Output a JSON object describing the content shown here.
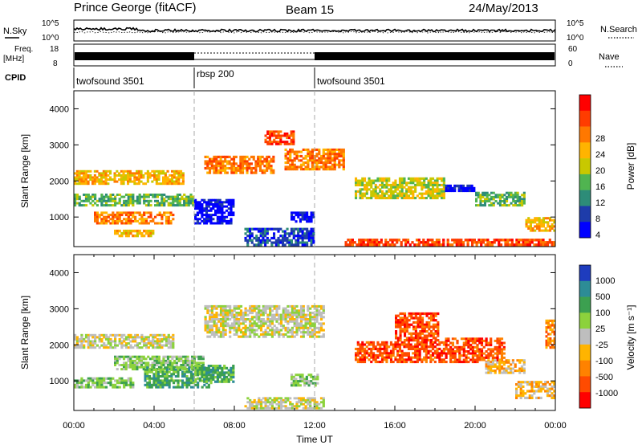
{
  "header": {
    "station": "Prince George (fitACF)",
    "beam": "Beam 15",
    "date": "24/May/2013"
  },
  "noise_panel": {
    "left_label": "N.Sky",
    "right_label": "N.Search",
    "left_ticks": [
      "10^5",
      "10^0"
    ],
    "right_ticks": [
      "10^5",
      "10^0"
    ]
  },
  "freq_panel": {
    "left_label_line1": "Freq.",
    "left_label_line2": "[MHz]",
    "left_ticks": [
      "18",
      "8"
    ],
    "right_ticks": [
      "60",
      "0"
    ],
    "right_label": "Nave"
  },
  "cpid": {
    "label": "CPID",
    "segments": [
      {
        "name": "twofsound 3501",
        "start": 0,
        "end": 6
      },
      {
        "name": "rbsp 200",
        "start": 6,
        "end": 12
      },
      {
        "name": "twofsound 3501",
        "start": 12,
        "end": 24
      }
    ]
  },
  "power_colorbar": {
    "label": "Power [dB]",
    "ticks": [
      "28",
      "24",
      "20",
      "16",
      "12",
      "8",
      "4"
    ],
    "colors": [
      "#ff0000",
      "#ff3c00",
      "#ff7800",
      "#ffb400",
      "#c8c800",
      "#50b450",
      "#2d8c78",
      "#1e3caa",
      "#0000ff"
    ]
  },
  "velocity_colorbar": {
    "label": "Velocity [m s⁻¹]",
    "ticks": [
      "1000",
      "500",
      "100",
      "25",
      "-25",
      "-100",
      "-500",
      "-1000"
    ],
    "colors": [
      "#1e3cbe",
      "#2d8c96",
      "#3ca050",
      "#8cd23c",
      "#bebebe",
      "#ffb400",
      "#ff8200",
      "#ff4b00",
      "#ff0000"
    ]
  },
  "chart_data": [
    {
      "type": "heatmap",
      "parameter": "power",
      "ylabel": "Slant Range [km]",
      "ylim": [
        180,
        4500
      ],
      "yticks": [
        1000,
        2000,
        3000,
        4000
      ],
      "xlim": [
        0,
        24
      ],
      "bands": [
        {
          "t0": 0.0,
          "t1": 5.5,
          "r0": 1900,
          "r1": 2300,
          "level": 3
        },
        {
          "t0": 0.0,
          "t1": 6.0,
          "r0": 1300,
          "r1": 1650,
          "level": 5
        },
        {
          "t0": 1.0,
          "t1": 5.0,
          "r0": 800,
          "r1": 1150,
          "level": 2
        },
        {
          "t0": 2.0,
          "t1": 4.0,
          "r0": 450,
          "r1": 650,
          "level": 3
        },
        {
          "t0": 6.0,
          "t1": 8.0,
          "r0": 800,
          "r1": 1500,
          "level": 8
        },
        {
          "t0": 8.5,
          "t1": 12.0,
          "r0": 200,
          "r1": 700,
          "level": 7
        },
        {
          "t0": 10.8,
          "t1": 12.0,
          "r0": 850,
          "r1": 1150,
          "level": 8
        },
        {
          "t0": 6.5,
          "t1": 10.0,
          "r0": 2200,
          "r1": 2700,
          "level": 2
        },
        {
          "t0": 9.5,
          "t1": 11.0,
          "r0": 3000,
          "r1": 3400,
          "level": 1
        },
        {
          "t0": 10.5,
          "t1": 13.5,
          "r0": 2300,
          "r1": 2900,
          "level": 2
        },
        {
          "t0": 14.0,
          "t1": 18.5,
          "r0": 1500,
          "r1": 2100,
          "level": 4
        },
        {
          "t0": 18.5,
          "t1": 20.0,
          "r0": 1700,
          "r1": 1900,
          "level": 8
        },
        {
          "t0": 20.0,
          "t1": 22.5,
          "r0": 1300,
          "r1": 1700,
          "level": 5
        },
        {
          "t0": 22.5,
          "t1": 24.0,
          "r0": 600,
          "r1": 1000,
          "level": 3
        },
        {
          "t0": 13.5,
          "t1": 24.0,
          "r0": 200,
          "r1": 400,
          "level": 1
        }
      ]
    },
    {
      "type": "heatmap",
      "parameter": "velocity",
      "ylabel": "Slant Range [km]",
      "ylim": [
        180,
        4500
      ],
      "yticks": [
        1000,
        2000,
        3000,
        4000
      ],
      "xlim": [
        0,
        24
      ],
      "xticks": [
        "00:00",
        "04:00",
        "08:00",
        "12:00",
        "16:00",
        "20:00",
        "00:00"
      ],
      "xlabel": "Time UT",
      "bands": [
        {
          "t0": 0.0,
          "t1": 5.0,
          "r0": 1900,
          "r1": 2300,
          "level": 4
        },
        {
          "t0": 2.0,
          "t1": 6.5,
          "r0": 1300,
          "r1": 1700,
          "level": 3
        },
        {
          "t0": 3.5,
          "t1": 7.0,
          "r0": 800,
          "r1": 1400,
          "level": 2
        },
        {
          "t0": 6.0,
          "t1": 8.0,
          "r0": 950,
          "r1": 1450,
          "level": 2
        },
        {
          "t0": 0.0,
          "t1": 3.0,
          "r0": 800,
          "r1": 1100,
          "level": 3
        },
        {
          "t0": 6.5,
          "t1": 12.5,
          "r0": 2200,
          "r1": 3100,
          "level": 4
        },
        {
          "t0": 8.5,
          "t1": 12.5,
          "r0": 220,
          "r1": 550,
          "level": 4
        },
        {
          "t0": 10.8,
          "t1": 12.2,
          "r0": 850,
          "r1": 1200,
          "level": 3
        },
        {
          "t0": 14.0,
          "t1": 18.5,
          "r0": 1500,
          "r1": 2100,
          "level": 7
        },
        {
          "t0": 16.0,
          "t1": 18.2,
          "r0": 2100,
          "r1": 2900,
          "level": 7
        },
        {
          "t0": 18.5,
          "t1": 21.5,
          "r0": 1500,
          "r1": 2200,
          "level": 7
        },
        {
          "t0": 20.5,
          "t1": 22.5,
          "r0": 1200,
          "r1": 1600,
          "level": 5
        },
        {
          "t0": 22.0,
          "t1": 24.0,
          "r0": 500,
          "r1": 1000,
          "level": 5
        },
        {
          "t0": 23.5,
          "t1": 24.0,
          "r0": 1900,
          "r1": 2700,
          "level": 6
        }
      ]
    }
  ]
}
